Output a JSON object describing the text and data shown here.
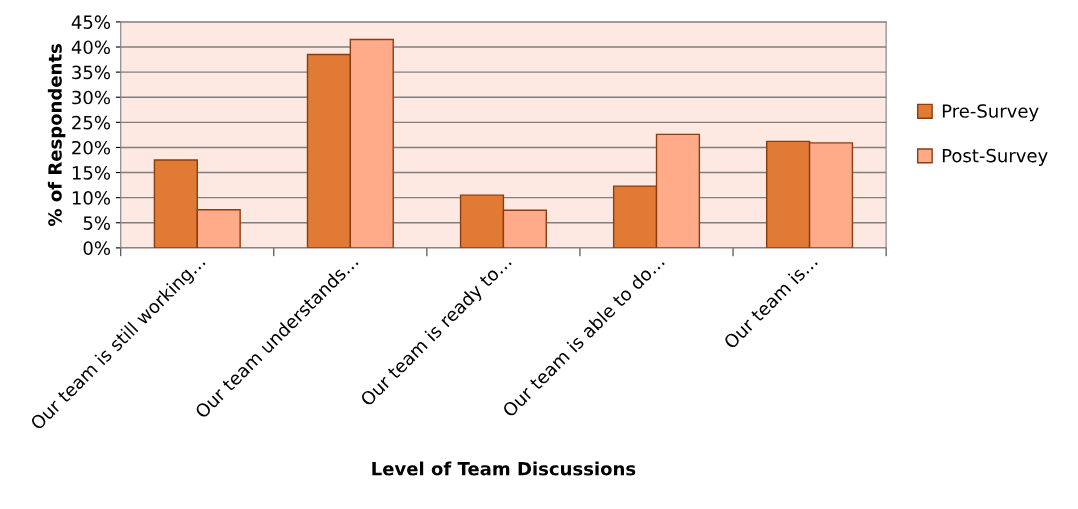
{
  "chart_data": {
    "type": "bar",
    "xlabel": "Level of Team Discussions",
    "ylabel": "% of Respondents",
    "categories": [
      "Our team is still working…",
      "Our team understands…",
      "Our team is ready to…",
      "Our team is able to do…",
      "Our team is…"
    ],
    "series": [
      {
        "name": "Pre-Survey",
        "color": "#e07a35",
        "values": [
          17.5,
          38.5,
          10.5,
          12.3,
          21.2
        ]
      },
      {
        "name": "Post-Survey",
        "color": "#ffab8a",
        "values": [
          7.6,
          41.5,
          7.5,
          22.6,
          20.9
        ]
      }
    ],
    "ylim": [
      0,
      45
    ],
    "yticks": [
      {
        "value": 0,
        "label": "0%"
      },
      {
        "value": 5,
        "label": "5%"
      },
      {
        "value": 10,
        "label": "10%"
      },
      {
        "value": 15,
        "label": "15%"
      },
      {
        "value": 20,
        "label": "20%"
      },
      {
        "value": 25,
        "label": "25%"
      },
      {
        "value": 30,
        "label": "30%"
      },
      {
        "value": 35,
        "label": "35%"
      },
      {
        "value": 40,
        "label": "40%"
      },
      {
        "value": 45,
        "label": "45%"
      }
    ],
    "grid": "y",
    "legend": "right"
  }
}
